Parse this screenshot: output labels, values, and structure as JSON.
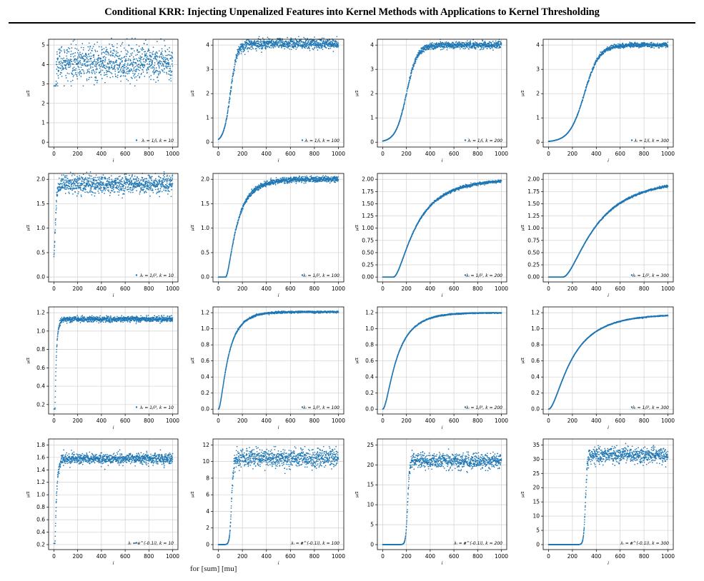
{
  "page": {
    "title": "Conditional KRR: Injecting Unpenalized Features into Kernel Methods with Applications to Kernel Thresholding",
    "footer_formula": "for [sum] [mu]"
  },
  "colors": {
    "marker": "#1f77b4",
    "grid": "#d0d0d0",
    "axis": "#000000"
  },
  "chart_data": [
    {
      "type": "scatter",
      "row": 0,
      "col": 0,
      "legend": "λᵢ = 1/i, k = 10",
      "xlabel": "i",
      "ylabel": "μ/Σ",
      "xlim": [
        0,
        1000
      ],
      "ylim": [
        0,
        5
      ],
      "xticks": [
        0,
        200,
        400,
        600,
        800,
        1000
      ],
      "yticks": [
        0,
        1,
        2,
        3,
        4,
        5
      ],
      "ytick_labels": [
        "0",
        "1",
        "2",
        "3",
        "4",
        "5"
      ],
      "trend": {
        "form": "logistic",
        "k": 10,
        "plateau": 4.1,
        "width": 6
      },
      "noise": {
        "sd": 0.45,
        "lo": 2.9,
        "hi": 5.35
      }
    },
    {
      "type": "scatter",
      "row": 0,
      "col": 1,
      "legend": "λᵢ = 1/i, k = 100",
      "xlabel": "i",
      "ylabel": "μ/Σ",
      "xlim": [
        0,
        1000
      ],
      "ylim": [
        0,
        4
      ],
      "xticks": [
        0,
        200,
        400,
        600,
        800,
        1000
      ],
      "yticks": [
        0,
        1,
        2,
        3,
        4
      ],
      "ytick_labels": [
        "0",
        "1",
        "2",
        "3",
        "4"
      ],
      "trend": {
        "form": "logistic",
        "k": 100,
        "plateau": 4.05,
        "width": 28
      },
      "noise": {
        "sd": 0.11,
        "lo": 0,
        "hi": 4.35
      }
    },
    {
      "type": "scatter",
      "row": 0,
      "col": 2,
      "legend": "λᵢ = 1/i, k = 200",
      "xlabel": "i",
      "ylabel": "μ/Σ",
      "xlim": [
        0,
        1000
      ],
      "ylim": [
        0,
        4
      ],
      "xticks": [
        0,
        200,
        400,
        600,
        800,
        1000
      ],
      "yticks": [
        0,
        1,
        2,
        3,
        4
      ],
      "ytick_labels": [
        "0",
        "1",
        "2",
        "3",
        "4"
      ],
      "trend": {
        "form": "logistic",
        "k": 200,
        "plateau": 4.0,
        "width": 45
      },
      "noise": {
        "sd": 0.07,
        "lo": 0,
        "hi": 4.3
      }
    },
    {
      "type": "scatter",
      "row": 0,
      "col": 3,
      "legend": "λᵢ = 1/i, k = 300",
      "xlabel": "i",
      "ylabel": "μ/Σ",
      "xlim": [
        0,
        1000
      ],
      "ylim": [
        0,
        4
      ],
      "xticks": [
        0,
        200,
        400,
        600,
        800,
        1000
      ],
      "yticks": [
        0,
        1,
        2,
        3,
        4
      ],
      "ytick_labels": [
        "0",
        "1",
        "2",
        "3",
        "4"
      ],
      "trend": {
        "form": "logistic",
        "k": 300,
        "plateau": 4.0,
        "width": 62
      },
      "noise": {
        "sd": 0.05,
        "lo": 0,
        "hi": 4.2
      }
    },
    {
      "type": "scatter",
      "row": 1,
      "col": 0,
      "legend": "λᵢ = 1/i², k = 10",
      "xlabel": "i",
      "ylabel": "μ/Σ",
      "xlim": [
        0,
        1000
      ],
      "ylim": [
        0,
        2
      ],
      "xticks": [
        0,
        200,
        400,
        600,
        800,
        1000
      ],
      "yticks": [
        0,
        0.5,
        1,
        1.5,
        2
      ],
      "ytick_labels": [
        "0.0",
        "0.5",
        "1.0",
        "1.5",
        "2.0"
      ],
      "trend": {
        "form": "logistic",
        "k": 10,
        "plateau": 1.9,
        "width": 8
      },
      "noise": {
        "sd": 0.09,
        "lo": 0,
        "hi": 2.15
      }
    },
    {
      "type": "scatter",
      "row": 1,
      "col": 1,
      "legend": "λᵢ = 1/i², k = 100",
      "xlabel": "i",
      "ylabel": "μ/Σ",
      "xlim": [
        0,
        1000
      ],
      "ylim": [
        0,
        2
      ],
      "xticks": [
        0,
        200,
        400,
        600,
        800,
        1000
      ],
      "yticks": [
        0,
        0.5,
        1,
        1.5,
        2
      ],
      "ytick_labels": [
        "0.0",
        "0.5",
        "1.0",
        "1.5",
        "2.0"
      ],
      "trend": {
        "form": "saturating",
        "k": 60,
        "plateau": 2.0,
        "width": 110
      },
      "noise": {
        "sd": 0.03,
        "lo": 0,
        "hi": 2.08
      }
    },
    {
      "type": "scatter",
      "row": 1,
      "col": 2,
      "legend": "λᵢ = 1/i², k = 200",
      "xlabel": "i",
      "ylabel": "μ/Σ",
      "xlim": [
        0,
        1000
      ],
      "ylim": [
        0,
        2
      ],
      "xticks": [
        0,
        200,
        400,
        600,
        800,
        1000
      ],
      "yticks": [
        0,
        0.25,
        0.5,
        0.75,
        1,
        1.25,
        1.5,
        1.75,
        2
      ],
      "ytick_labels": [
        "0.00",
        "0.25",
        "0.50",
        "0.75",
        "1.00",
        "1.25",
        "1.50",
        "1.75",
        "2.00"
      ],
      "trend": {
        "form": "saturating",
        "k": 90,
        "plateau": 2.0,
        "width": 230
      },
      "noise": {
        "sd": 0.015,
        "lo": 0,
        "hi": 2.0
      }
    },
    {
      "type": "scatter",
      "row": 1,
      "col": 3,
      "legend": "λᵢ = 1/i², k = 300",
      "xlabel": "i",
      "ylabel": "μ/Σ",
      "xlim": [
        0,
        1000
      ],
      "ylim": [
        0,
        2
      ],
      "xticks": [
        0,
        200,
        400,
        600,
        800,
        1000
      ],
      "yticks": [
        0,
        0.25,
        0.5,
        0.75,
        1,
        1.25,
        1.5,
        1.75,
        2
      ],
      "ytick_labels": [
        "0.00",
        "0.25",
        "0.50",
        "0.75",
        "1.00",
        "1.25",
        "1.50",
        "1.75",
        "2.00"
      ],
      "trend": {
        "form": "saturating",
        "k": 120,
        "plateau": 2.0,
        "width": 330
      },
      "noise": {
        "sd": 0.012,
        "lo": 0,
        "hi": 1.95
      }
    },
    {
      "type": "scatter",
      "row": 2,
      "col": 0,
      "legend": "λᵢ = 1/i³, k = 10",
      "xlabel": "i",
      "ylabel": "μ/Σ",
      "xlim": [
        0,
        1000
      ],
      "ylim": [
        0.15,
        1.2
      ],
      "xticks": [
        0,
        200,
        400,
        600,
        800,
        1000
      ],
      "yticks": [
        0.2,
        0.4,
        0.6,
        0.8,
        1,
        1.2
      ],
      "ytick_labels": [
        "0.2",
        "0.4",
        "0.6",
        "0.8",
        "1.0",
        "1.2"
      ],
      "trend": {
        "form": "saturating",
        "k": 5,
        "plateau": 1.13,
        "width": 14
      },
      "noise": {
        "sd": 0.015,
        "lo": 0.15,
        "hi": 1.17
      }
    },
    {
      "type": "scatter",
      "row": 2,
      "col": 1,
      "legend": "λᵢ = 1/i³, k = 100",
      "xlabel": "i",
      "ylabel": "μ/Σ",
      "xlim": [
        0,
        1000
      ],
      "ylim": [
        0,
        1.2
      ],
      "xticks": [
        0,
        200,
        400,
        600,
        800,
        1000
      ],
      "yticks": [
        0,
        0.2,
        0.4,
        0.6,
        0.8,
        1,
        1.2
      ],
      "ytick_labels": [
        "0.0",
        "0.2",
        "0.4",
        "0.6",
        "0.8",
        "1.0",
        "1.2"
      ],
      "trend": {
        "form": "saturating",
        "k": 0,
        "plateau": 1.21,
        "width": 95
      },
      "noise": {
        "sd": 0.006,
        "lo": 0,
        "hi": 1.22
      }
    },
    {
      "type": "scatter",
      "row": 2,
      "col": 2,
      "legend": "λᵢ = 1/i³, k = 200",
      "xlabel": "i",
      "ylabel": "μ/Σ",
      "xlim": [
        0,
        1000
      ],
      "ylim": [
        0,
        1.2
      ],
      "xticks": [
        0,
        200,
        400,
        600,
        800,
        1000
      ],
      "yticks": [
        0,
        0.2,
        0.4,
        0.6,
        0.8,
        1,
        1.2
      ],
      "ytick_labels": [
        "0.0",
        "0.2",
        "0.4",
        "0.6",
        "0.8",
        "1.0",
        "1.2"
      ],
      "trend": {
        "form": "saturating",
        "k": 0,
        "plateau": 1.2,
        "width": 140
      },
      "noise": {
        "sd": 0.004,
        "lo": 0,
        "hi": 1.2
      }
    },
    {
      "type": "scatter",
      "row": 2,
      "col": 3,
      "legend": "λᵢ = 1/i³, k = 300",
      "xlabel": "i",
      "ylabel": "μ/Σ",
      "xlim": [
        0,
        1000
      ],
      "ylim": [
        0,
        1.2
      ],
      "xticks": [
        0,
        200,
        400,
        600,
        800,
        1000
      ],
      "yticks": [
        0,
        0.2,
        0.4,
        0.6,
        0.8,
        1,
        1.2
      ],
      "ytick_labels": [
        "0.0",
        "0.2",
        "0.4",
        "0.6",
        "0.8",
        "1.0",
        "1.2"
      ],
      "trend": {
        "form": "saturating",
        "k": 0,
        "plateau": 1.18,
        "width": 230
      },
      "noise": {
        "sd": 0.003,
        "lo": 0,
        "hi": 1.18
      }
    },
    {
      "type": "scatter",
      "row": 3,
      "col": 0,
      "legend": "λᵢ = e^(-0.1i), k = 10",
      "xlabel": "i",
      "ylabel": "μ/Σ",
      "xlim": [
        0,
        1000
      ],
      "ylim": [
        0.2,
        1.8
      ],
      "xticks": [
        0,
        200,
        400,
        600,
        800,
        1000
      ],
      "yticks": [
        0.2,
        0.4,
        0.6,
        0.8,
        1,
        1.2,
        1.4,
        1.6,
        1.8
      ],
      "ytick_labels": [
        "0.2",
        "0.4",
        "0.6",
        "0.8",
        "1.0",
        "1.2",
        "1.4",
        "1.6",
        "1.8"
      ],
      "trend": {
        "form": "saturating",
        "k": 5,
        "plateau": 1.58,
        "width": 16
      },
      "noise": {
        "sd": 0.04,
        "lo": 0.22,
        "hi": 1.72
      }
    },
    {
      "type": "scatter",
      "row": 3,
      "col": 1,
      "legend": "λᵢ = e^(-0.1i), k = 100",
      "xlabel": "i",
      "ylabel": "μ/Σ",
      "xlim": [
        0,
        1000
      ],
      "ylim": [
        0,
        12
      ],
      "xticks": [
        0,
        200,
        400,
        600,
        800,
        1000
      ],
      "yticks": [
        0,
        2,
        4,
        6,
        8,
        10,
        12
      ],
      "ytick_labels": [
        "0",
        "2",
        "4",
        "6",
        "8",
        "10",
        "12"
      ],
      "trend": {
        "form": "logistic",
        "k": 110,
        "plateau": 10.4,
        "width": 8
      },
      "noise": {
        "sd": 0.55,
        "lo": 0,
        "hi": 11.8
      }
    },
    {
      "type": "scatter",
      "row": 3,
      "col": 2,
      "legend": "λᵢ = e^(-0.1i), k = 200",
      "xlabel": "i",
      "ylabel": "μ/Σ",
      "xlim": [
        0,
        1000
      ],
      "ylim": [
        0,
        25
      ],
      "xticks": [
        0,
        200,
        400,
        600,
        800,
        1000
      ],
      "yticks": [
        0,
        5,
        10,
        15,
        20,
        25
      ],
      "ytick_labels": [
        "0",
        "5",
        "10",
        "15",
        "20",
        "25"
      ],
      "trend": {
        "form": "logistic",
        "k": 210,
        "plateau": 21.0,
        "width": 8
      },
      "noise": {
        "sd": 0.95,
        "lo": 0,
        "hi": 24.5
      }
    },
    {
      "type": "scatter",
      "row": 3,
      "col": 3,
      "legend": "λᵢ = e^(-0.1i), k = 300",
      "xlabel": "i",
      "ylabel": "μ/Σ",
      "xlim": [
        0,
        1000
      ],
      "ylim": [
        0,
        35
      ],
      "xticks": [
        0,
        200,
        400,
        600,
        800,
        1000
      ],
      "yticks": [
        0,
        5,
        10,
        15,
        20,
        25,
        30,
        35
      ],
      "ytick_labels": [
        "0",
        "5",
        "10",
        "15",
        "20",
        "25",
        "30",
        "35"
      ],
      "trend": {
        "form": "logistic",
        "k": 310,
        "plateau": 31.5,
        "width": 8
      },
      "noise": {
        "sd": 1.3,
        "lo": 0,
        "hi": 35.5
      }
    }
  ]
}
